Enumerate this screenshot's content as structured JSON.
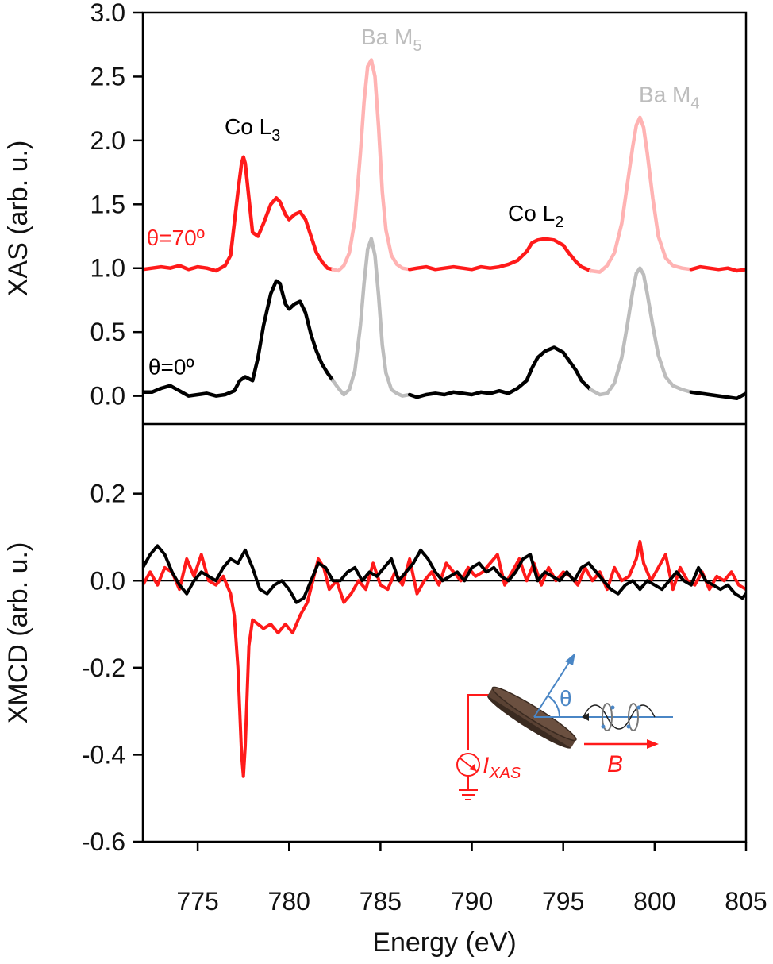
{
  "chart_data": [
    {
      "type": "line",
      "panel": "top",
      "ylabel": "XAS (arb. u.)",
      "xlim": [
        772,
        805
      ],
      "ylim": [
        -0.22,
        3.0
      ],
      "yticks": [
        0.0,
        0.5,
        1.0,
        1.5,
        2.0,
        2.5,
        3.0
      ],
      "ytick_labels": [
        "0.0",
        "0.5",
        "1.0",
        "1.5",
        "2.0",
        "2.5",
        "3.0"
      ],
      "highlight_ranges": [
        [
          782.6,
          786.8
        ],
        [
          796.6,
          802.0
        ]
      ],
      "annotations": [
        {
          "text": "Co L",
          "sub": "3",
          "x": 778.0,
          "y": 2.05,
          "color": "#000000"
        },
        {
          "text": "Ba M",
          "sub": "5",
          "x": 785.6,
          "y": 2.75,
          "color": "#bdbdbd"
        },
        {
          "text": "Co L",
          "sub": "2",
          "x": 793.5,
          "y": 1.37,
          "color": "#000000"
        },
        {
          "text": "Ba M",
          "sub": "4",
          "x": 800.8,
          "y": 2.3,
          "color": "#bdbdbd"
        },
        {
          "text": "θ=70º",
          "sub": "",
          "x": 772.2,
          "y": 1.18,
          "color": "#ff1a1a"
        },
        {
          "text": "θ=0º",
          "sub": "",
          "x": 772.3,
          "y": 0.17,
          "color": "#000000"
        }
      ],
      "series": [
        {
          "color": "#ff1a1a",
          "highlight_color": "#ffb3b3",
          "x": [
            772.0,
            772.5,
            773.0,
            773.5,
            774.0,
            774.5,
            775.0,
            775.5,
            776.0,
            776.5,
            776.8,
            777.0,
            777.2,
            777.4,
            777.5,
            777.6,
            777.8,
            778.0,
            778.3,
            778.6,
            779.0,
            779.3,
            779.5,
            779.8,
            780.0,
            780.3,
            780.6,
            780.9,
            781.2,
            781.5,
            781.8,
            782.1,
            782.4,
            782.7,
            783.0,
            783.3,
            783.6,
            783.9,
            784.1,
            784.3,
            784.5,
            784.7,
            784.9,
            785.1,
            785.3,
            785.6,
            785.9,
            786.2,
            786.6,
            787.0,
            787.5,
            788.0,
            788.5,
            789.0,
            789.5,
            790.0,
            790.5,
            791.0,
            791.5,
            792.0,
            792.5,
            793.0,
            793.3,
            793.6,
            794.0,
            794.5,
            795.0,
            795.3,
            795.7,
            796.0,
            796.5,
            797.0,
            797.4,
            797.8,
            798.2,
            798.5,
            798.8,
            799.0,
            799.2,
            799.4,
            799.6,
            799.9,
            800.2,
            800.6,
            801.0,
            801.5,
            802.0,
            802.5,
            803.0,
            803.5,
            804.0,
            804.5,
            805.0
          ],
          "y": [
            0.99,
            1.0,
            1.01,
            1.0,
            1.02,
            0.99,
            1.01,
            1.0,
            0.98,
            1.02,
            1.1,
            1.35,
            1.6,
            1.82,
            1.87,
            1.82,
            1.55,
            1.28,
            1.25,
            1.35,
            1.5,
            1.55,
            1.52,
            1.42,
            1.38,
            1.42,
            1.44,
            1.38,
            1.25,
            1.12,
            1.05,
            1.0,
            0.99,
            0.98,
            1.02,
            1.12,
            1.38,
            1.9,
            2.3,
            2.58,
            2.63,
            2.5,
            2.1,
            1.6,
            1.3,
            1.1,
            1.03,
            1.0,
            0.99,
            1.0,
            1.01,
            0.99,
            1.0,
            1.01,
            1.0,
            0.99,
            1.01,
            1.0,
            1.01,
            1.03,
            1.06,
            1.13,
            1.2,
            1.22,
            1.23,
            1.22,
            1.18,
            1.12,
            1.05,
            1.01,
            0.98,
            0.97,
            1.02,
            1.12,
            1.35,
            1.65,
            1.95,
            2.12,
            2.18,
            2.1,
            1.9,
            1.55,
            1.25,
            1.08,
            1.02,
            1.0,
            0.99,
            1.01,
            1.0,
            0.99,
            1.0,
            0.98,
            0.99
          ]
        },
        {
          "color": "#000000",
          "highlight_color": "#bdbdbd",
          "x": [
            772.0,
            772.5,
            773.0,
            773.5,
            774.0,
            774.5,
            775.0,
            775.5,
            776.0,
            776.5,
            777.0,
            777.3,
            777.6,
            778.0,
            778.3,
            778.6,
            779.0,
            779.3,
            779.5,
            779.8,
            780.0,
            780.3,
            780.6,
            780.9,
            781.2,
            781.5,
            781.8,
            782.1,
            782.4,
            782.7,
            783.0,
            783.3,
            783.6,
            783.9,
            784.1,
            784.3,
            784.5,
            784.7,
            784.9,
            785.1,
            785.3,
            785.6,
            785.9,
            786.2,
            786.6,
            787.0,
            787.5,
            788.0,
            788.5,
            789.0,
            789.5,
            790.0,
            790.5,
            791.0,
            791.5,
            792.0,
            792.5,
            793.0,
            793.3,
            793.6,
            794.0,
            794.5,
            795.0,
            795.3,
            795.7,
            796.0,
            796.5,
            797.0,
            797.4,
            797.8,
            798.2,
            798.5,
            798.8,
            799.0,
            799.2,
            799.4,
            799.6,
            799.9,
            800.2,
            800.6,
            801.0,
            801.5,
            802.0,
            802.5,
            803.0,
            803.5,
            804.0,
            804.5,
            805.0
          ],
          "y": [
            0.03,
            0.03,
            0.06,
            0.08,
            0.04,
            0.0,
            0.01,
            0.02,
            0.0,
            0.01,
            0.04,
            0.12,
            0.15,
            0.12,
            0.3,
            0.55,
            0.8,
            0.9,
            0.88,
            0.72,
            0.68,
            0.72,
            0.74,
            0.65,
            0.48,
            0.35,
            0.25,
            0.18,
            0.12,
            0.06,
            0.01,
            0.05,
            0.2,
            0.55,
            0.88,
            1.15,
            1.23,
            1.1,
            0.78,
            0.4,
            0.18,
            0.05,
            0.02,
            0.0,
            0.01,
            -0.01,
            0.01,
            0.02,
            0.01,
            0.03,
            0.02,
            0.01,
            0.03,
            0.02,
            0.04,
            0.02,
            0.06,
            0.12,
            0.22,
            0.3,
            0.35,
            0.38,
            0.34,
            0.28,
            0.2,
            0.12,
            0.05,
            0.01,
            0.02,
            0.1,
            0.3,
            0.55,
            0.82,
            0.96,
            1.0,
            0.95,
            0.8,
            0.55,
            0.32,
            0.15,
            0.08,
            0.05,
            0.03,
            0.02,
            0.01,
            0.0,
            -0.01,
            -0.02,
            0.02
          ]
        }
      ]
    },
    {
      "type": "line",
      "panel": "bottom",
      "xlabel": "Energy (eV)",
      "ylabel": "XMCD (arb. u.)",
      "xlim": [
        772,
        805
      ],
      "ylim": [
        -0.6,
        0.36
      ],
      "xticks": [
        775,
        780,
        785,
        790,
        795,
        800,
        805
      ],
      "xtick_labels": [
        "775",
        "780",
        "785",
        "790",
        "795",
        "800",
        "805"
      ],
      "yticks": [
        -0.6,
        -0.4,
        -0.2,
        0.0,
        0.2
      ],
      "ytick_labels": [
        "-0.6",
        "-0.4",
        "-0.2",
        "0.0",
        "0.2"
      ],
      "zero_line": true,
      "series": [
        {
          "color": "#ff1a1a",
          "x": [
            772.0,
            772.4,
            772.8,
            773.2,
            773.6,
            774.0,
            774.4,
            774.8,
            775.2,
            775.6,
            776.0,
            776.4,
            776.8,
            777.0,
            777.2,
            777.4,
            777.5,
            777.6,
            777.8,
            778.0,
            778.3,
            778.6,
            779.0,
            779.4,
            779.8,
            780.2,
            780.6,
            781.0,
            781.3,
            781.6,
            781.9,
            782.2,
            782.6,
            783.0,
            783.4,
            783.8,
            784.2,
            784.6,
            785.0,
            785.4,
            785.8,
            786.2,
            786.6,
            787.0,
            787.4,
            787.8,
            788.2,
            788.6,
            789.0,
            789.4,
            789.8,
            790.2,
            790.6,
            791.0,
            791.4,
            791.8,
            792.2,
            792.6,
            793.0,
            793.4,
            793.8,
            794.2,
            794.6,
            795.0,
            795.4,
            795.8,
            796.2,
            796.6,
            797.0,
            797.4,
            797.8,
            798.2,
            798.6,
            799.0,
            799.2,
            799.4,
            799.8,
            800.2,
            800.6,
            801.0,
            801.4,
            801.8,
            802.2,
            802.6,
            803.0,
            803.4,
            803.8,
            804.2,
            804.6,
            805.0
          ],
          "y": [
            -0.01,
            0.02,
            -0.01,
            0.03,
            0.02,
            -0.02,
            0.05,
            0.01,
            0.06,
            0.0,
            -0.01,
            0.01,
            -0.03,
            -0.08,
            -0.2,
            -0.4,
            -0.45,
            -0.38,
            -0.15,
            -0.09,
            -0.1,
            -0.11,
            -0.1,
            -0.12,
            -0.1,
            -0.12,
            -0.08,
            -0.05,
            0.0,
            0.05,
            0.03,
            -0.02,
            0.0,
            -0.05,
            -0.03,
            0.0,
            -0.02,
            0.04,
            -0.01,
            -0.02,
            0.02,
            -0.01,
            0.05,
            -0.03,
            0.0,
            0.02,
            -0.01,
            0.04,
            0.02,
            0.0,
            0.03,
            0.01,
            0.02,
            0.04,
            0.06,
            -0.01,
            0.02,
            0.05,
            0.0,
            0.04,
            -0.01,
            0.03,
            0.0,
            0.02,
            0.01,
            -0.01,
            0.03,
            0.0,
            0.02,
            -0.02,
            0.03,
            0.0,
            0.01,
            0.05,
            0.09,
            0.04,
            0.0,
            0.03,
            0.06,
            -0.02,
            0.03,
            0.0,
            -0.01,
            0.02,
            -0.02,
            0.01,
            0.0,
            0.02,
            -0.01,
            -0.02
          ]
        },
        {
          "color": "#000000",
          "x": [
            772.0,
            772.4,
            772.8,
            773.2,
            773.6,
            774.0,
            774.4,
            774.8,
            775.2,
            775.6,
            776.0,
            776.4,
            776.8,
            777.2,
            777.6,
            778.0,
            778.4,
            778.8,
            779.2,
            779.6,
            780.0,
            780.4,
            780.8,
            781.2,
            781.6,
            782.0,
            782.4,
            782.8,
            783.2,
            783.6,
            784.0,
            784.4,
            784.8,
            785.2,
            785.6,
            786.0,
            786.4,
            786.8,
            787.2,
            787.6,
            788.0,
            788.4,
            788.8,
            789.2,
            789.6,
            790.0,
            790.4,
            790.8,
            791.2,
            791.6,
            792.0,
            792.4,
            792.8,
            793.2,
            793.6,
            794.0,
            794.4,
            794.8,
            795.2,
            795.6,
            796.0,
            796.4,
            796.8,
            797.2,
            797.6,
            798.0,
            798.4,
            798.8,
            799.2,
            799.6,
            800.0,
            800.4,
            800.8,
            801.2,
            801.6,
            802.0,
            802.4,
            802.8,
            803.2,
            803.6,
            804.0,
            804.4,
            804.8,
            805.0
          ],
          "y": [
            0.03,
            0.06,
            0.08,
            0.06,
            0.02,
            -0.01,
            -0.03,
            0.0,
            0.02,
            0.01,
            0.0,
            0.03,
            0.05,
            0.04,
            0.07,
            0.03,
            -0.02,
            -0.03,
            -0.01,
            0.0,
            -0.02,
            -0.05,
            -0.04,
            0.0,
            0.04,
            0.03,
            0.0,
            0.0,
            0.02,
            0.03,
            0.0,
            0.02,
            0.01,
            0.03,
            0.05,
            0.0,
            0.02,
            0.04,
            0.07,
            0.05,
            0.02,
            0.0,
            0.01,
            0.02,
            0.0,
            0.03,
            0.04,
            0.02,
            0.03,
            0.01,
            0.0,
            0.02,
            0.05,
            0.06,
            0.0,
            0.02,
            0.01,
            0.0,
            0.02,
            0.0,
            0.03,
            0.04,
            0.02,
            0.0,
            -0.02,
            -0.03,
            -0.01,
            0.0,
            -0.02,
            0.0,
            -0.01,
            -0.02,
            0.0,
            0.02,
            0.0,
            -0.01,
            0.03,
            0.0,
            -0.01,
            -0.02,
            -0.01,
            -0.03,
            -0.04,
            -0.03
          ]
        }
      ]
    }
  ],
  "inset": {
    "theta": "θ",
    "current_label": "I",
    "current_sub": "XAS",
    "field_label": "B",
    "current_color": "#ff1a1a",
    "beam_color": "#4a86c5",
    "sample_color": "#6b5040"
  }
}
